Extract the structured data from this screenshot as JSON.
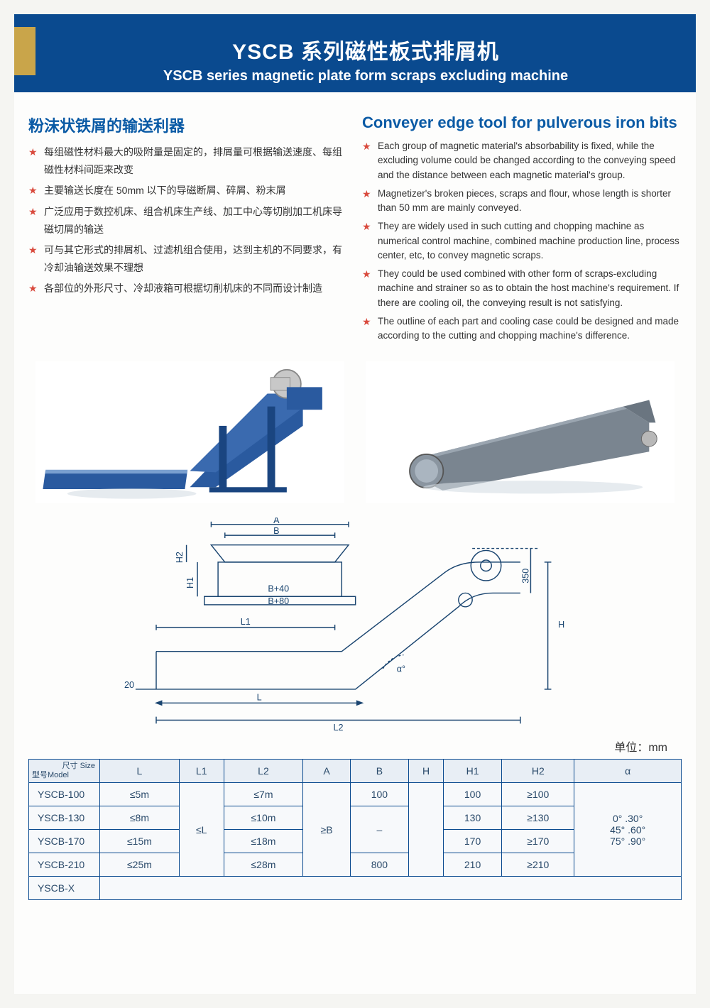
{
  "header": {
    "title_ch": "YSCB 系列磁性板式排屑机",
    "title_en": "YSCB series magnetic plate form scraps excluding machine"
  },
  "left_col": {
    "title": "粉沫状铁屑的输送利器",
    "bullets": [
      "每组磁性材料最大的吸附量是固定的，排屑量可根据输送速度、每组磁性材料间距来改变",
      "主要输送长度在 50mm 以下的导磁断屑、碎屑、粉末屑",
      "广泛应用于数控机床、组合机床生产线、加工中心等切削加工机床导磁切屑的输送",
      "可与其它形式的排屑机、过滤机组合使用，达到主机的不同要求，有冷却油输送效果不理想",
      "各部位的外形尺寸、冷却液箱可根据切削机床的不同而设计制造"
    ]
  },
  "right_col": {
    "title": "Conveyer edge tool for pulverous iron bits",
    "bullets": [
      "Each group of magnetic material's absorbability is fixed, while the excluding volume could be changed according to the conveying speed and the distance between each magnetic material's group.",
      "Magnetizer's broken pieces, scraps and flour, whose length is shorter than 50 mm are mainly conveyed.",
      "They are widely used in such cutting and chopping machine as numerical control machine, combined machine production line, process center, etc, to convey magnetic scraps.",
      "They could be used combined with other form of scraps-excluding machine and strainer so as to obtain the host machine's requirement. If there are cooling oil, the conveying result is not satisfying.",
      "The outline of each part and cooling case could be designed and made according to the cutting and chopping machine's difference."
    ]
  },
  "diagram_labels": {
    "A": "A",
    "B": "B",
    "Bp40": "B+40",
    "Bp80": "B+80",
    "H1": "H1",
    "H2": "H2",
    "L1": "L1",
    "L": "L",
    "L2": "L2",
    "twenty": "20",
    "alpha": "α°",
    "H": "H",
    "threefifty": "350"
  },
  "unit_label": "单位：mm",
  "table": {
    "header_corner": {
      "size": "尺寸 Size",
      "model": "型号Model"
    },
    "columns": [
      "L",
      "L1",
      "L2",
      "A",
      "B",
      "H",
      "H1",
      "H2",
      "α"
    ],
    "rows": [
      {
        "model": "YSCB-100",
        "L": "≤5m",
        "L2": "≤7m",
        "B": "100",
        "H1": "100",
        "H2": "≥100"
      },
      {
        "model": "YSCB-130",
        "L": "≤8m",
        "L2": "≤10m",
        "B": "–",
        "H1": "130",
        "H2": "≥130"
      },
      {
        "model": "YSCB-170",
        "L": "≤15m",
        "L2": "≤18m",
        "B": "",
        "H1": "170",
        "H2": "≥170"
      },
      {
        "model": "YSCB-210",
        "L": "≤25m",
        "L2": "≤28m",
        "B": "800",
        "H1": "210",
        "H2": "≥210"
      },
      {
        "model": "YSCB-X"
      }
    ],
    "merged": {
      "L1": "≤L",
      "A": "≥B",
      "H": "",
      "alpha": "0° .30°\n45° .60°\n75° .90°"
    }
  },
  "colors": {
    "header_blue": "#0a4a8f",
    "header_gold": "#c9a54a",
    "title_blue": "#0a5aa5",
    "star_red": "#d94a3d",
    "machine_blue": "#2a5a9f",
    "machine_grey": "#7a8590",
    "diagram_line": "#1a4570"
  }
}
